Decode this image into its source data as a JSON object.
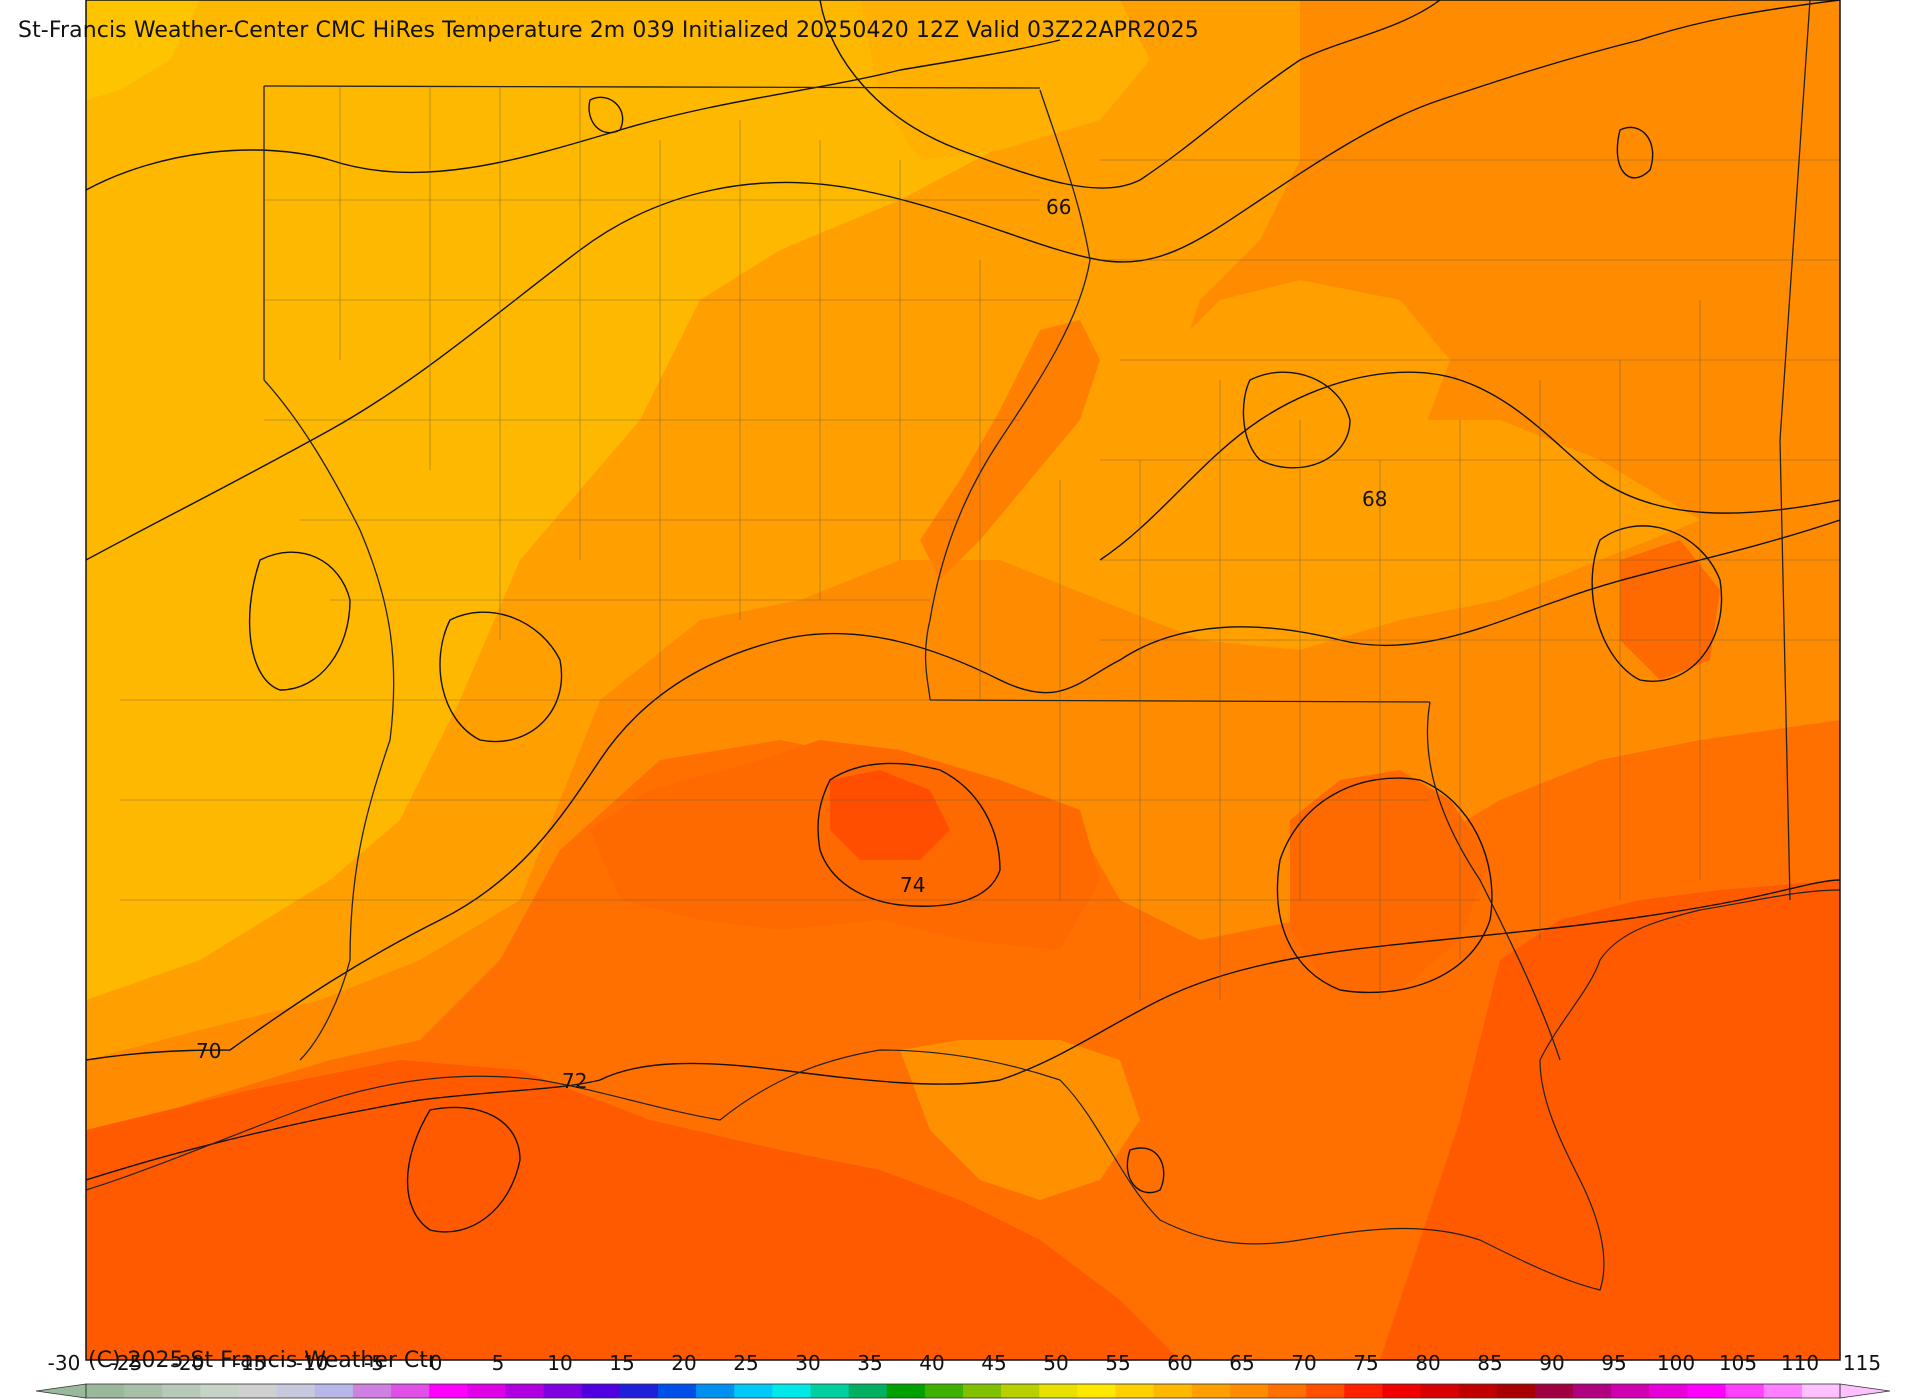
{
  "header": {
    "title": "St-Francis Weather-Center CMC HiRes Temperature 2m  039 Initialized 20250420 12Z Valid 03Z22APR2025"
  },
  "footer": {
    "copyright": "(C) 2025 St Francis Weather Ctr"
  },
  "map": {
    "contour_labels": [
      "66",
      "68",
      "70",
      "72",
      "74"
    ]
  },
  "colorbar": {
    "ticks": [
      "-30",
      "-25",
      "-20",
      "-15",
      "-10",
      "-5",
      "0",
      "5",
      "10",
      "15",
      "20",
      "25",
      "30",
      "35",
      "40",
      "45",
      "50",
      "55",
      "60",
      "65",
      "70",
      "75",
      "80",
      "85",
      "90",
      "95",
      "100",
      "105",
      "110",
      "115"
    ],
    "colors": [
      "#9ab89a",
      "#a8bfa8",
      "#b7c9b7",
      "#c6d3c6",
      "#d0d0d0",
      "#c8c8de",
      "#b8b8e8",
      "#d080e0",
      "#e050e8",
      "#ff00ff",
      "#e000e8",
      "#b000e0",
      "#8000e0",
      "#5000e0",
      "#2020d8",
      "#0050e8",
      "#0090f0",
      "#00c8f8",
      "#00e8e8",
      "#00d0a0",
      "#00b060",
      "#00a000",
      "#40b000",
      "#80c000",
      "#b8d000",
      "#e8e000",
      "#ffe800",
      "#ffd000",
      "#ffb800",
      "#ffa000",
      "#ff8c00",
      "#ff7000",
      "#ff5000",
      "#ff2000",
      "#f00000",
      "#d80000",
      "#c00000",
      "#a80000",
      "#a00040",
      "#b00080",
      "#d000b0",
      "#e800d8",
      "#ff00ff",
      "#ff40ff",
      "#ff80ff",
      "#ffc0ff"
    ]
  }
}
